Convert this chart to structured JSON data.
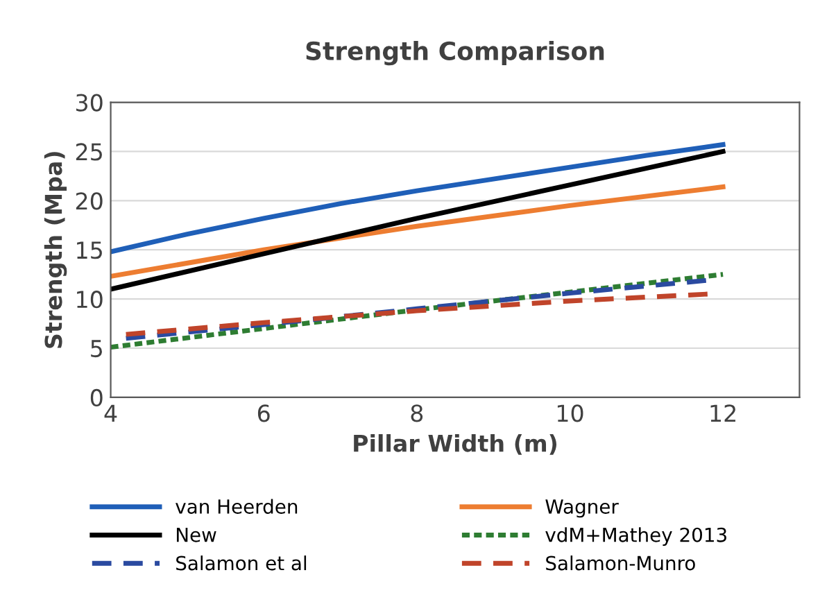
{
  "chart_data": {
    "type": "line",
    "title": "Strength Comparison",
    "xlabel": "Pillar Width (m)",
    "ylabel": "Strength (Mpa)",
    "xlim": [
      4,
      13
    ],
    "xticks": [
      4,
      6,
      8,
      10,
      12
    ],
    "ylim": [
      0,
      30
    ],
    "yticks": [
      0,
      5,
      10,
      15,
      20,
      25,
      30
    ],
    "grid": "y",
    "legend": "bottom",
    "series": [
      {
        "name": "van Heerden",
        "color": "#1f5fb8",
        "line_style": "solid",
        "x": [
          4,
          5,
          6,
          7,
          8,
          9,
          10,
          11,
          12
        ],
        "values": [
          14.8,
          16.6,
          18.2,
          19.7,
          21.0,
          22.2,
          23.4,
          24.6,
          25.7
        ]
      },
      {
        "name": "Wagner",
        "color": "#ed7d31",
        "line_style": "solid",
        "x": [
          4,
          6,
          8,
          10,
          12
        ],
        "values": [
          12.3,
          15.0,
          17.4,
          19.5,
          21.4
        ]
      },
      {
        "name": "New",
        "color": "#000000",
        "line_style": "solid",
        "x": [
          4,
          6,
          8,
          10,
          12
        ],
        "values": [
          11.0,
          14.6,
          18.2,
          21.6,
          25.0
        ]
      },
      {
        "name": "vdM+Mathey 2013",
        "color": "#2e7d32",
        "line_style": "dotted",
        "x": [
          4,
          6,
          8,
          10,
          12
        ],
        "values": [
          5.1,
          7.0,
          8.9,
          10.7,
          12.5
        ]
      },
      {
        "name": "Salamon et al",
        "color": "#2a4aa0",
        "line_style": "dashed",
        "x": [
          4.2,
          6,
          8,
          10,
          11.8
        ],
        "values": [
          6.0,
          7.4,
          9.0,
          10.6,
          11.9
        ]
      },
      {
        "name": "Salamon-Munro",
        "color": "#c0442a",
        "line_style": "dashed",
        "x": [
          4.2,
          6,
          8,
          10,
          11.8
        ],
        "values": [
          6.4,
          7.6,
          8.8,
          9.8,
          10.5
        ]
      }
    ]
  }
}
